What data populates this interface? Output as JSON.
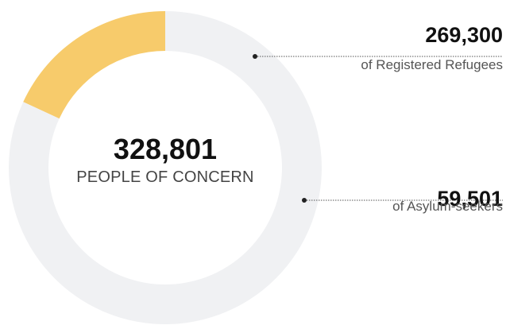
{
  "chart_data": {
    "type": "pie",
    "variant": "donut",
    "total": {
      "value": "328,801",
      "label": "PEOPLE OF CONCERN"
    },
    "slices": [
      {
        "value": 59501,
        "value_text": "59,501",
        "label": "of Asylum-seekers",
        "color": "#f7cb6b"
      },
      {
        "value": 269300,
        "value_text": "269,300",
        "label": "of Registered Refugees",
        "color": "#f0f1f3"
      }
    ],
    "legend": "callouts-right"
  }
}
